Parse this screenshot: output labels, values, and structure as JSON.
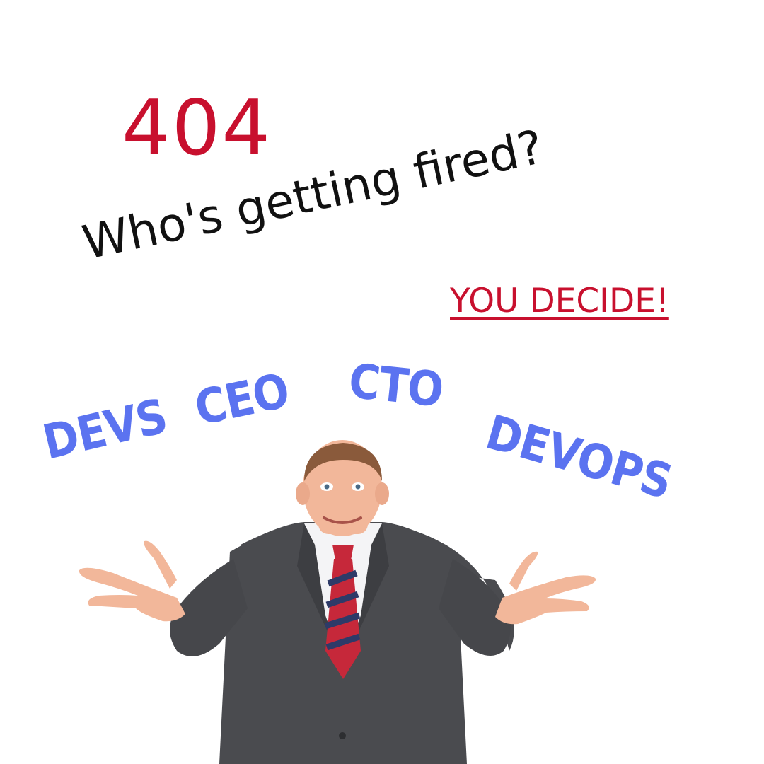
{
  "error_code": "404",
  "headline": "Who's getting fired?",
  "cta": "YOU DECIDE!",
  "roles": {
    "devs": "DEVS",
    "ceo": "CEO",
    "cto": "CTO",
    "devops": "DEVOPS"
  },
  "colors": {
    "error_red": "#c8102e",
    "headline": "#111111",
    "role_blue": "#5b73f0",
    "suit": "#4a4b4f",
    "skin": "#f2b79a",
    "shirt": "#f4f4f6",
    "tie_red": "#c6283a",
    "tie_navy": "#2e3a68",
    "background": "#ffffff"
  },
  "image": {
    "subject": "shrugging-businessman"
  }
}
